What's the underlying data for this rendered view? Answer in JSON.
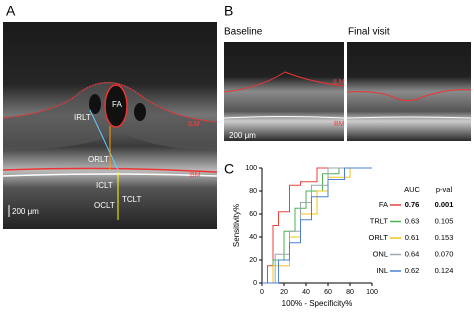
{
  "panels": {
    "a": {
      "label": "A",
      "annotations": {
        "fa": "FA",
        "irlt": "IRLT",
        "orlt": "ORLT",
        "iclt": "ICLT",
        "oclt": "OCLT",
        "tclt": "TCLT",
        "ilm": "ILM",
        "bm": "BM"
      },
      "scale": "200 μm"
    },
    "b": {
      "label": "B",
      "baseline": "Baseline",
      "final": "Final visit",
      "ilm": "ILM",
      "bm": "BM",
      "scale": "200 μm"
    },
    "c": {
      "label": "C"
    }
  },
  "chart_data": {
    "type": "line",
    "xlabel": "100% - Specificity%",
    "ylabel": "Sensitivity%",
    "xlim": [
      0,
      100
    ],
    "ylim": [
      0,
      100
    ],
    "xticks": [
      0,
      20,
      40,
      60,
      80,
      100
    ],
    "yticks": [
      0,
      20,
      40,
      60,
      80,
      100
    ],
    "series": [
      {
        "name": "FA",
        "color": "#e8423f",
        "x": [
          0,
          5,
          5,
          10,
          10,
          15,
          15,
          25,
          25,
          35,
          35,
          50,
          50,
          100
        ],
        "values": [
          0,
          0,
          15,
          15,
          50,
          50,
          62,
          62,
          85,
          85,
          88,
          88,
          100,
          100
        ]
      },
      {
        "name": "TRLT",
        "color": "#4caf50",
        "x": [
          0,
          10,
          10,
          20,
          20,
          30,
          30,
          40,
          40,
          55,
          55,
          70,
          70,
          100
        ],
        "values": [
          0,
          0,
          20,
          20,
          45,
          45,
          65,
          65,
          80,
          80,
          95,
          95,
          100,
          100
        ]
      },
      {
        "name": "ORLT",
        "color": "#f0c419",
        "x": [
          0,
          10,
          10,
          25,
          25,
          35,
          35,
          50,
          50,
          60,
          60,
          80,
          80,
          100
        ],
        "values": [
          0,
          0,
          15,
          15,
          40,
          40,
          60,
          60,
          80,
          80,
          92,
          92,
          100,
          100
        ]
      },
      {
        "name": "ONL",
        "color": "#9aa7b0",
        "x": [
          0,
          12,
          12,
          25,
          25,
          35,
          35,
          45,
          45,
          60,
          60,
          100
        ],
        "values": [
          0,
          0,
          25,
          25,
          45,
          45,
          70,
          70,
          85,
          85,
          100,
          100
        ]
      },
      {
        "name": "INL",
        "color": "#4a7fd4",
        "x": [
          0,
          15,
          15,
          25,
          25,
          35,
          35,
          45,
          45,
          60,
          60,
          75,
          75,
          100
        ],
        "values": [
          0,
          0,
          20,
          20,
          35,
          35,
          55,
          55,
          75,
          75,
          90,
          90,
          100,
          100
        ]
      }
    ],
    "table": {
      "headers": [
        "AUC",
        "p-val"
      ],
      "rows": [
        [
          "0.76",
          "0.001"
        ],
        [
          "0.63",
          "0.105"
        ],
        [
          "0.61",
          "0.153"
        ],
        [
          "0.64",
          "0.070"
        ],
        [
          "0.62",
          "0.124"
        ]
      ]
    }
  }
}
